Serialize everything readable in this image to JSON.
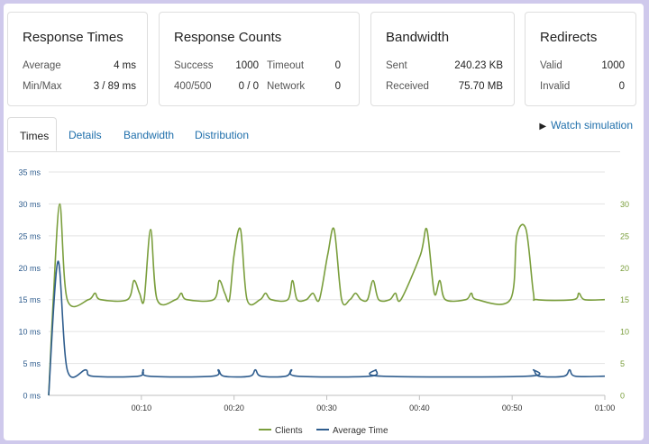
{
  "cards": {
    "response_times": {
      "title": "Response Times",
      "average_label": "Average",
      "average_value": "4 ms",
      "minmax_label": "Min/Max",
      "minmax_value": "3 / 89 ms"
    },
    "response_counts": {
      "title": "Response Counts",
      "success_label": "Success",
      "success_value": "1000",
      "timeout_label": "Timeout",
      "timeout_value": "0",
      "s400_label": "400/500",
      "s400_value": "0 / 0",
      "network_label": "Network",
      "network_value": "0"
    },
    "bandwidth": {
      "title": "Bandwidth",
      "sent_label": "Sent",
      "sent_value": "240.23 KB",
      "received_label": "Received",
      "received_value": "75.70 MB"
    },
    "redirects": {
      "title": "Redirects",
      "valid_label": "Valid",
      "valid_value": "1000",
      "invalid_label": "Invalid",
      "invalid_value": "0"
    }
  },
  "tabs": [
    "Times",
    "Details",
    "Bandwidth",
    "Distribution"
  ],
  "watch_label": "Watch simulation",
  "colors": {
    "clients": "#7a9e3c",
    "average": "#2f5d8e",
    "grid": "#e3e3e3",
    "link": "#1f6fab"
  },
  "chart_data": {
    "type": "line",
    "y_left_label": "ms",
    "ylim": [
      0,
      35
    ],
    "y_ticks_left": [
      "0 ms",
      "5 ms",
      "10 ms",
      "15 ms",
      "20 ms",
      "25 ms",
      "30 ms",
      "35 ms"
    ],
    "y_ticks_right": [
      "0",
      "5",
      "10",
      "15",
      "20",
      "25",
      "30"
    ],
    "x_range_seconds": [
      0,
      60
    ],
    "x_ticks": [
      "00:10",
      "00:20",
      "00:30",
      "00:40",
      "00:50",
      "01:00"
    ],
    "legend": [
      "Clients",
      "Average Time"
    ],
    "series": [
      {
        "name": "Clients",
        "axis": "right",
        "points": [
          [
            0,
            0
          ],
          [
            0.5,
            15
          ],
          [
            1.2,
            30
          ],
          [
            2,
            15
          ],
          [
            4.3,
            15
          ],
          [
            5,
            16
          ],
          [
            5.6,
            15
          ],
          [
            8.5,
            15
          ],
          [
            9.2,
            18
          ],
          [
            9.8,
            16
          ],
          [
            10.3,
            15
          ],
          [
            11,
            26
          ],
          [
            11.7,
            15
          ],
          [
            13.7,
            15
          ],
          [
            14.3,
            16
          ],
          [
            14.9,
            15
          ],
          [
            17.8,
            15
          ],
          [
            18.4,
            18
          ],
          [
            19,
            16
          ],
          [
            19.5,
            15
          ],
          [
            20,
            22
          ],
          [
            20.7,
            26
          ],
          [
            21.4,
            15
          ],
          [
            22.8,
            15
          ],
          [
            23.4,
            16
          ],
          [
            24,
            15
          ],
          [
            25.8,
            15
          ],
          [
            26.3,
            18
          ],
          [
            26.8,
            15
          ],
          [
            27.8,
            15
          ],
          [
            28.5,
            16
          ],
          [
            29.2,
            15
          ],
          [
            30.1,
            22
          ],
          [
            30.8,
            26
          ],
          [
            31.6,
            15
          ],
          [
            32.5,
            15
          ],
          [
            33.1,
            16
          ],
          [
            33.7,
            15
          ],
          [
            34.4,
            15
          ],
          [
            35,
            18
          ],
          [
            35.6,
            15
          ],
          [
            36.8,
            15
          ],
          [
            37.4,
            16
          ],
          [
            38,
            15
          ],
          [
            40.1,
            22
          ],
          [
            40.8,
            26
          ],
          [
            41.6,
            16
          ],
          [
            42.2,
            18
          ],
          [
            42.8,
            15
          ],
          [
            45,
            15
          ],
          [
            45.6,
            16
          ],
          [
            46.2,
            15
          ],
          [
            49.8,
            15
          ],
          [
            50.5,
            25
          ],
          [
            51.5,
            26
          ],
          [
            52.3,
            16
          ],
          [
            52.7,
            15
          ],
          [
            56.6,
            15
          ],
          [
            57.2,
            16
          ],
          [
            57.8,
            15
          ],
          [
            60,
            15
          ]
        ]
      },
      {
        "name": "Average Time",
        "axis": "left",
        "points": [
          [
            0,
            0
          ],
          [
            1,
            21
          ],
          [
            2,
            4
          ],
          [
            4,
            4
          ],
          [
            4.7,
            3
          ],
          [
            9.7,
            3
          ],
          [
            10.2,
            4
          ],
          [
            10.8,
            3
          ],
          [
            17.7,
            3
          ],
          [
            18.3,
            4
          ],
          [
            18.9,
            3
          ],
          [
            21.7,
            3
          ],
          [
            22.3,
            4
          ],
          [
            22.9,
            3
          ],
          [
            25.6,
            3
          ],
          [
            26.2,
            4
          ],
          [
            26.8,
            3
          ],
          [
            34.7,
            3
          ],
          [
            35.3,
            4
          ],
          [
            35.9,
            3
          ],
          [
            51.7,
            3
          ],
          [
            52.3,
            4
          ],
          [
            52.9,
            3
          ],
          [
            55.6,
            3
          ],
          [
            56.2,
            4
          ],
          [
            56.8,
            3
          ],
          [
            60,
            3
          ]
        ]
      }
    ]
  }
}
